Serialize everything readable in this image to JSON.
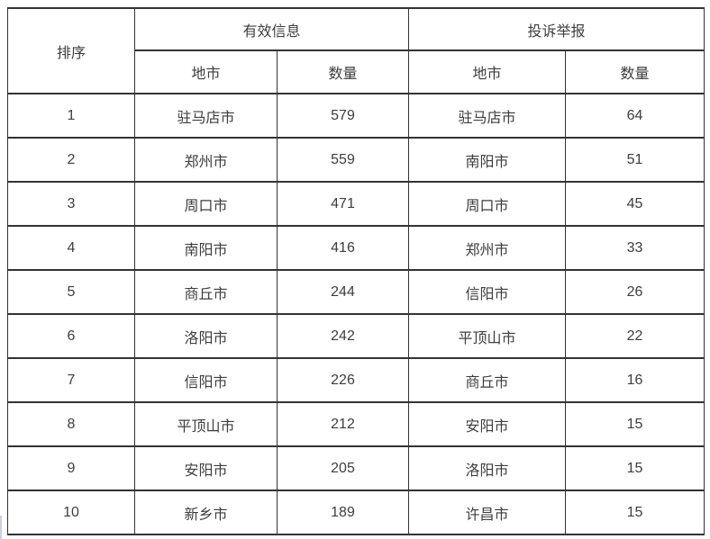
{
  "colors": {
    "border": "#333333",
    "text": "#3d3d3d",
    "background": "#ffffff"
  },
  "table": {
    "header": {
      "rank": "排序",
      "valid_info": "有效信息",
      "complaints": "投诉举报",
      "city": "地市",
      "count": "数量"
    },
    "rows": [
      {
        "rank": "1",
        "valid_city": "驻马店市",
        "valid_count": "579",
        "complaint_city": "驻马店市",
        "complaint_count": "64"
      },
      {
        "rank": "2",
        "valid_city": "郑州市",
        "valid_count": "559",
        "complaint_city": "南阳市",
        "complaint_count": "51"
      },
      {
        "rank": "3",
        "valid_city": "周口市",
        "valid_count": "471",
        "complaint_city": "周口市",
        "complaint_count": "45"
      },
      {
        "rank": "4",
        "valid_city": "南阳市",
        "valid_count": "416",
        "complaint_city": "郑州市",
        "complaint_count": "33"
      },
      {
        "rank": "5",
        "valid_city": "商丘市",
        "valid_count": "244",
        "complaint_city": "信阳市",
        "complaint_count": "26"
      },
      {
        "rank": "6",
        "valid_city": "洛阳市",
        "valid_count": "242",
        "complaint_city": "平顶山市",
        "complaint_count": "22"
      },
      {
        "rank": "7",
        "valid_city": "信阳市",
        "valid_count": "226",
        "complaint_city": "商丘市",
        "complaint_count": "16"
      },
      {
        "rank": "8",
        "valid_city": "平顶山市",
        "valid_count": "212",
        "complaint_city": "安阳市",
        "complaint_count": "15"
      },
      {
        "rank": "9",
        "valid_city": "安阳市",
        "valid_count": "205",
        "complaint_city": "洛阳市",
        "complaint_count": "15"
      },
      {
        "rank": "10",
        "valid_city": "新乡市",
        "valid_count": "189",
        "complaint_city": "许昌市",
        "complaint_count": "15"
      }
    ]
  },
  "chart_data": {
    "type": "table",
    "title": "",
    "columns": [
      "排序",
      "有效信息 地市",
      "有效信息 数量",
      "投诉举报 地市",
      "投诉举报 数量"
    ],
    "rows": [
      [
        1,
        "驻马店市",
        579,
        "驻马店市",
        64
      ],
      [
        2,
        "郑州市",
        559,
        "南阳市",
        51
      ],
      [
        3,
        "周口市",
        471,
        "周口市",
        45
      ],
      [
        4,
        "南阳市",
        416,
        "郑州市",
        33
      ],
      [
        5,
        "商丘市",
        244,
        "信阳市",
        26
      ],
      [
        6,
        "洛阳市",
        242,
        "平顶山市",
        22
      ],
      [
        7,
        "信阳市",
        226,
        "商丘市",
        16
      ],
      [
        8,
        "平顶山市",
        212,
        "安阳市",
        15
      ],
      [
        9,
        "安阳市",
        205,
        "洛阳市",
        15
      ],
      [
        10,
        "新乡市",
        189,
        "许昌市",
        15
      ]
    ]
  }
}
